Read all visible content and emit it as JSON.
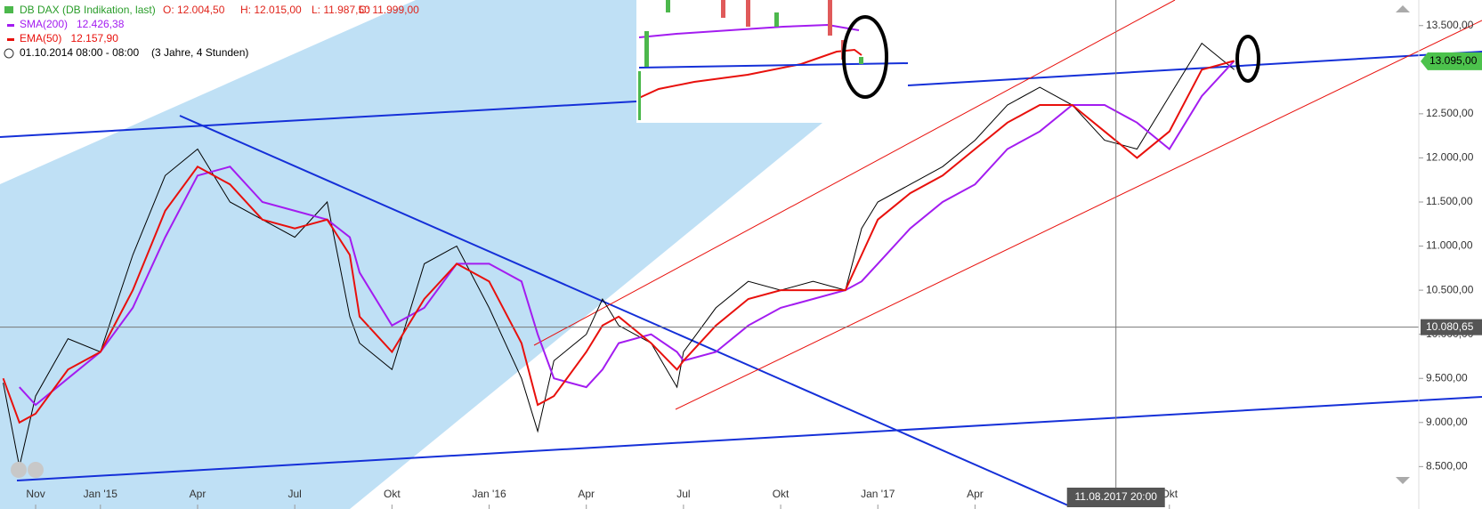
{
  "chart_data": {
    "type": "line",
    "legend": {
      "instrument": "DB DAX (DB Indikation, last)",
      "ohlc": [
        "O: 12.004,50",
        "H: 12.015,00",
        "L: 11.987,50",
        "C: 11.999,00"
      ],
      "period": "01.10.2014 08:00 - 08:00",
      "range": "(3 Jahre, 4 Stunden)"
    },
    "x": [
      0,
      0.5,
      1,
      2,
      3,
      4,
      5,
      6,
      7,
      8,
      9,
      10,
      10.7,
      11,
      12,
      13,
      14,
      15,
      16,
      16.5,
      17,
      18,
      18.5,
      19,
      20,
      20.8,
      21,
      22,
      23,
      24,
      25,
      26,
      26.5,
      27,
      28,
      29,
      30,
      31,
      32,
      33,
      34,
      35,
      36,
      37,
      38
    ],
    "series": [
      {
        "name": "DB DAX",
        "color": "#000000",
        "values": [
          9450,
          8500,
          9300,
          9950,
          9800,
          10900,
          11800,
          12100,
          11500,
          11300,
          11100,
          11500,
          10200,
          9900,
          9600,
          10800,
          11000,
          10300,
          9500,
          8900,
          9700,
          10000,
          10400,
          10100,
          9900,
          9400,
          9800,
          10300,
          10600,
          10500,
          10600,
          10500,
          11200,
          11500,
          11700,
          11900,
          12200,
          12600,
          12800,
          12600,
          12200,
          12100,
          12700,
          13300,
          13000
        ]
      },
      {
        "name": "SMA(200)",
        "readout": "12.426,38",
        "color": "#a31cf0",
        "values": [
          null,
          9400,
          9200,
          9500,
          9800,
          10300,
          11100,
          11800,
          11900,
          11500,
          11400,
          11300,
          11100,
          10700,
          10100,
          10300,
          10800,
          10800,
          10600,
          10000,
          9500,
          9400,
          9600,
          9900,
          10000,
          9800,
          9700,
          9800,
          10100,
          10300,
          10400,
          10500,
          10600,
          10800,
          11200,
          11500,
          11700,
          12100,
          12300,
          12600,
          12600,
          12400,
          12100,
          12700,
          13100
        ]
      },
      {
        "name": "EMA(50)",
        "readout": "12.157,90",
        "color": "#e8100c",
        "values": [
          9500,
          9000,
          9100,
          9600,
          9800,
          10500,
          11400,
          11900,
          11700,
          11300,
          11200,
          11300,
          10900,
          10200,
          9800,
          10400,
          10800,
          10600,
          9900,
          9200,
          9300,
          9800,
          10100,
          10200,
          9900,
          9600,
          9700,
          10100,
          10400,
          10500,
          10500,
          10500,
          10900,
          11300,
          11600,
          11800,
          12100,
          12400,
          12600,
          12600,
          12300,
          12000,
          12300,
          13000,
          13100
        ]
      }
    ],
    "xlim": [
      -0.1,
      43.7
    ],
    "xticks": [
      {
        "value": 1,
        "label": "Nov"
      },
      {
        "value": 3,
        "label": "Jan '15"
      },
      {
        "value": 6,
        "label": "Apr"
      },
      {
        "value": 9,
        "label": "Jul"
      },
      {
        "value": 12,
        "label": "Okt"
      },
      {
        "value": 15,
        "label": "Jan '16"
      },
      {
        "value": 18,
        "label": "Apr"
      },
      {
        "value": 21,
        "label": "Jul"
      },
      {
        "value": 24,
        "label": "Okt"
      },
      {
        "value": 27,
        "label": "Jan '17"
      },
      {
        "value": 30,
        "label": "Apr"
      },
      {
        "value": 36,
        "label": "Okt"
      }
    ],
    "ylim": [
      8100,
      13790
    ],
    "yticks": [
      {
        "value": 8500,
        "label": "8.500,00"
      },
      {
        "value": 9000,
        "label": "9.000,00"
      },
      {
        "value": 9500,
        "label": "9.500,00"
      },
      {
        "value": 10000,
        "label": "10.000,00"
      },
      {
        "value": 10500,
        "label": "10.500,00"
      },
      {
        "value": 11000,
        "label": "11.000,00"
      },
      {
        "value": 11500,
        "label": "11.500,00"
      },
      {
        "value": 12000,
        "label": "12.000,00"
      },
      {
        "value": 12500,
        "label": "12.500,00"
      },
      {
        "value": 13500,
        "label": "13.500,00"
      }
    ],
    "last_price": {
      "value": 13095,
      "label": "13.095,00",
      "color": "#4cc24c"
    },
    "crosshair": {
      "x": 34.35,
      "x_label": "11.08.2017 20:00",
      "y": {
        "value": 10080.65,
        "label": "10.080,65"
      }
    }
  }
}
